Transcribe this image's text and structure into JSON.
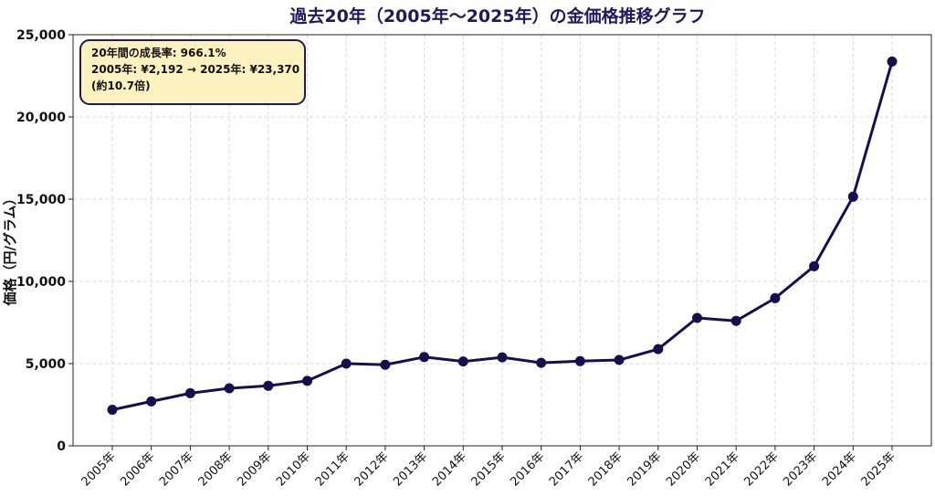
{
  "chart_data": {
    "type": "line",
    "title": "過去20年（2005年〜2025年）の金価格推移グラフ",
    "xlabel": "",
    "ylabel": "価格（円/グラム）",
    "categories": [
      "2005年",
      "2006年",
      "2007年",
      "2008年",
      "2009年",
      "2010年",
      "2011年",
      "2012年",
      "2013年",
      "2014年",
      "2015年",
      "2016年",
      "2017年",
      "2018年",
      "2019年",
      "2020年",
      "2021年",
      "2022年",
      "2023年",
      "2024年",
      "2025年"
    ],
    "series": [
      {
        "values": [
          2192,
          2700,
          3200,
          3500,
          3650,
          3950,
          5000,
          4930,
          5400,
          5130,
          5380,
          5050,
          5150,
          5220,
          5880,
          7780,
          7600,
          8980,
          10920,
          15150,
          23370
        ],
        "color": "#14104f"
      }
    ],
    "ylim": [
      0,
      25000
    ],
    "yticks": [
      0,
      5000,
      10000,
      15000,
      20000,
      25000
    ],
    "ytick_labels": [
      "0",
      "5,000",
      "10,000",
      "15,000",
      "20,000",
      "25,000"
    ],
    "grid": true,
    "annotation": {
      "lines": [
        "20年間の成長率: 966.1%",
        "2005年: ¥2,192 → 2025年: ¥23,370",
        "(約10.7倍)"
      ],
      "placement": "top-left"
    }
  }
}
